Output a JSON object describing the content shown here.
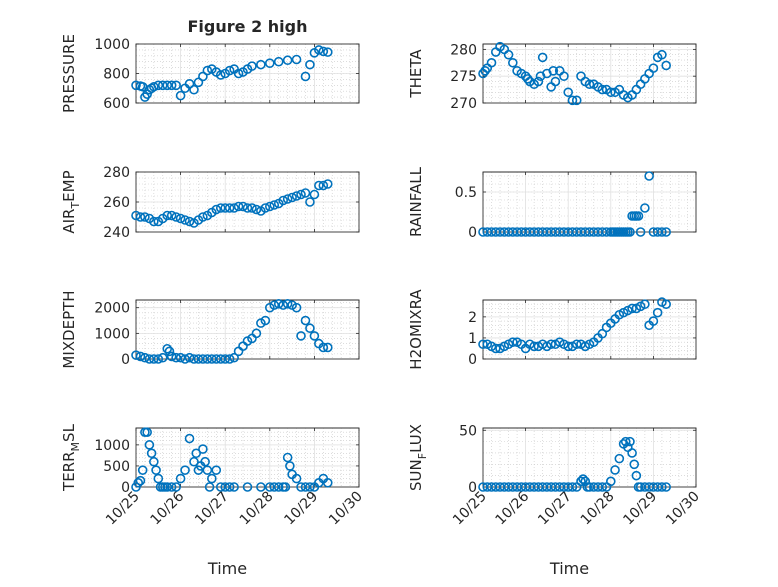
{
  "figure": {
    "title": "Figure 2 high",
    "colors": {
      "marker": "#0072BD",
      "grid": "#e0e0e0",
      "axis": "#262626"
    }
  },
  "chart_data": [
    {
      "type": "scatter",
      "id": "pressure",
      "title": "Figure 2 high",
      "ylabel": "PRESSURE",
      "xlabel": "",
      "ylim": [
        600,
        1000
      ],
      "yticks": [
        600,
        800,
        1000
      ],
      "xlim": [
        0,
        5
      ],
      "xticks": [
        0,
        1,
        2,
        3,
        4,
        5
      ],
      "xticklabels": [],
      "x": [
        0.0,
        0.1,
        0.15,
        0.2,
        0.25,
        0.3,
        0.35,
        0.4,
        0.5,
        0.6,
        0.7,
        0.8,
        0.9,
        1.0,
        1.1,
        1.2,
        1.3,
        1.4,
        1.5,
        1.6,
        1.7,
        1.8,
        1.9,
        2.0,
        2.1,
        2.2,
        2.3,
        2.4,
        2.5,
        2.6,
        2.8,
        3.0,
        3.2,
        3.4,
        3.6,
        3.8,
        3.9,
        4.0,
        4.1,
        4.2,
        4.3
      ],
      "y": [
        720,
        715,
        710,
        640,
        660,
        690,
        700,
        710,
        720,
        720,
        720,
        720,
        720,
        650,
        700,
        730,
        690,
        740,
        780,
        820,
        830,
        810,
        790,
        800,
        820,
        830,
        800,
        810,
        830,
        850,
        860,
        870,
        880,
        890,
        895,
        780,
        860,
        940,
        960,
        950,
        945
      ],
      "grid": true,
      "minor_grid": true
    },
    {
      "type": "scatter",
      "id": "theta",
      "title": "",
      "ylabel": "THETA",
      "xlabel": "",
      "ylim": [
        270,
        281
      ],
      "yticks": [
        270,
        275,
        280
      ],
      "xlim": [
        0,
        5
      ],
      "xticks": [
        0,
        1,
        2,
        3,
        4,
        5
      ],
      "xticklabels": [],
      "x": [
        0.0,
        0.05,
        0.1,
        0.2,
        0.3,
        0.4,
        0.5,
        0.6,
        0.7,
        0.8,
        0.9,
        1.0,
        1.05,
        1.1,
        1.2,
        1.3,
        1.35,
        1.4,
        1.5,
        1.6,
        1.65,
        1.7,
        1.8,
        1.9,
        2.0,
        2.1,
        2.2,
        2.3,
        2.4,
        2.5,
        2.6,
        2.7,
        2.8,
        2.9,
        3.0,
        3.1,
        3.2,
        3.3,
        3.4,
        3.5,
        3.6,
        3.7,
        3.8,
        3.9,
        4.0,
        4.1,
        4.2,
        4.3
      ],
      "y": [
        275.5,
        276,
        276.5,
        277.5,
        279.5,
        280.5,
        280,
        279,
        277.5,
        276,
        275.5,
        275,
        274.5,
        274,
        273.5,
        274,
        275,
        278.5,
        275.5,
        273,
        276,
        274,
        276,
        275,
        272,
        270.5,
        270.5,
        275,
        274,
        273.5,
        273.5,
        273,
        272.5,
        272.5,
        272,
        272,
        272.5,
        271.5,
        271,
        271.5,
        272.5,
        273.5,
        274.5,
        275.5,
        276.5,
        278.5,
        279,
        277
      ],
      "grid": true,
      "minor_grid": true
    },
    {
      "type": "scatter",
      "id": "air_temp",
      "title": "",
      "ylabel": "AIR",
      "ylabel_sub": "T",
      "ylabel_tail": "EMP",
      "xlabel": "",
      "ylim": [
        240,
        280
      ],
      "yticks": [
        240,
        260,
        280
      ],
      "xlim": [
        0,
        5
      ],
      "xticks": [
        0,
        1,
        2,
        3,
        4,
        5
      ],
      "xticklabels": [],
      "x": [
        0.0,
        0.1,
        0.2,
        0.3,
        0.4,
        0.5,
        0.6,
        0.7,
        0.8,
        0.9,
        1.0,
        1.1,
        1.2,
        1.3,
        1.4,
        1.5,
        1.6,
        1.7,
        1.8,
        1.9,
        2.0,
        2.1,
        2.2,
        2.3,
        2.4,
        2.5,
        2.6,
        2.7,
        2.8,
        2.9,
        3.0,
        3.1,
        3.2,
        3.3,
        3.4,
        3.5,
        3.6,
        3.7,
        3.8,
        3.9,
        4.0,
        4.1,
        4.2,
        4.3
      ],
      "y": [
        251,
        250,
        250,
        249,
        247,
        247,
        249,
        251,
        251,
        250,
        249,
        248,
        247,
        246,
        248,
        250,
        251,
        253,
        255,
        256,
        256,
        256,
        256,
        257,
        257,
        256,
        256,
        255,
        254,
        256,
        257,
        258,
        259,
        261,
        262,
        263,
        264,
        265,
        266,
        260,
        265,
        271,
        271,
        272
      ],
      "grid": true,
      "minor_grid": true
    },
    {
      "type": "scatter",
      "id": "rainfall",
      "title": "",
      "ylabel": "RAINFALL",
      "xlabel": "",
      "ylim": [
        0,
        0.75
      ],
      "yticks": [
        0,
        0.5
      ],
      "xlim": [
        0,
        5
      ],
      "xticks": [
        0,
        1,
        2,
        3,
        4,
        5
      ],
      "xticklabels": [],
      "x": [
        0.0,
        0.1,
        0.2,
        0.3,
        0.4,
        0.5,
        0.6,
        0.7,
        0.8,
        0.9,
        1.0,
        1.1,
        1.2,
        1.3,
        1.4,
        1.5,
        1.6,
        1.7,
        1.8,
        1.9,
        2.0,
        2.1,
        2.2,
        2.3,
        2.4,
        2.5,
        2.6,
        2.7,
        2.8,
        2.9,
        3.0,
        3.05,
        3.1,
        3.15,
        3.2,
        3.25,
        3.3,
        3.35,
        3.4,
        3.45,
        3.5,
        3.55,
        3.6,
        3.65,
        3.7,
        3.8,
        3.9,
        4.0,
        4.1,
        4.2,
        4.3
      ],
      "y": [
        0,
        0,
        0,
        0,
        0,
        0,
        0,
        0,
        0,
        0,
        0,
        0,
        0,
        0,
        0,
        0,
        0,
        0,
        0,
        0,
        0,
        0,
        0,
        0,
        0,
        0,
        0,
        0,
        0,
        0,
        0,
        0,
        0,
        0,
        0,
        0,
        0,
        0,
        0,
        0,
        0.2,
        0.2,
        0.2,
        0.2,
        0,
        0.3,
        0.7,
        0,
        0,
        0,
        0
      ],
      "grid": true,
      "minor_grid": true
    },
    {
      "type": "scatter",
      "id": "mixdepth",
      "title": "",
      "ylabel": "MIXDEPTH",
      "xlabel": "",
      "ylim": [
        0,
        2300
      ],
      "yticks": [
        0,
        1000,
        2000
      ],
      "xlim": [
        0,
        5
      ],
      "xticks": [
        0,
        1,
        2,
        3,
        4,
        5
      ],
      "xticklabels": [],
      "x": [
        0.0,
        0.1,
        0.2,
        0.3,
        0.4,
        0.5,
        0.6,
        0.7,
        0.75,
        0.8,
        0.9,
        1.0,
        1.1,
        1.2,
        1.3,
        1.4,
        1.5,
        1.6,
        1.7,
        1.8,
        1.9,
        2.0,
        2.1,
        2.2,
        2.3,
        2.4,
        2.5,
        2.6,
        2.7,
        2.8,
        2.9,
        3.0,
        3.1,
        3.2,
        3.3,
        3.4,
        3.5,
        3.6,
        3.7,
        3.8,
        3.9,
        4.0,
        4.1,
        4.2,
        4.3
      ],
      "y": [
        150,
        100,
        50,
        0,
        0,
        0,
        50,
        400,
        300,
        100,
        50,
        50,
        0,
        50,
        0,
        0,
        0,
        0,
        0,
        0,
        0,
        0,
        0,
        50,
        300,
        500,
        700,
        800,
        1000,
        1400,
        1500,
        2000,
        2100,
        2150,
        2100,
        2150,
        2100,
        2000,
        900,
        1500,
        1200,
        900,
        600,
        450,
        450
      ],
      "grid": true,
      "minor_grid": true
    },
    {
      "type": "scatter",
      "id": "h2omixra",
      "title": "",
      "ylabel": "H2OMIXRA",
      "xlabel": "",
      "ylim": [
        0,
        2.8
      ],
      "yticks": [
        0,
        1,
        2
      ],
      "xlim": [
        0,
        5
      ],
      "xticks": [
        0,
        1,
        2,
        3,
        4,
        5
      ],
      "xticklabels": [],
      "x": [
        0.0,
        0.1,
        0.2,
        0.3,
        0.4,
        0.5,
        0.6,
        0.7,
        0.8,
        0.9,
        1.0,
        1.1,
        1.2,
        1.3,
        1.4,
        1.5,
        1.6,
        1.7,
        1.8,
        1.9,
        2.0,
        2.1,
        2.2,
        2.3,
        2.4,
        2.5,
        2.6,
        2.7,
        2.8,
        2.9,
        3.0,
        3.1,
        3.2,
        3.3,
        3.4,
        3.5,
        3.6,
        3.7,
        3.8,
        3.9,
        4.0,
        4.1,
        4.2,
        4.3
      ],
      "y": [
        0.7,
        0.7,
        0.6,
        0.5,
        0.5,
        0.6,
        0.7,
        0.8,
        0.8,
        0.7,
        0.5,
        0.7,
        0.6,
        0.6,
        0.7,
        0.6,
        0.7,
        0.7,
        0.8,
        0.7,
        0.6,
        0.6,
        0.7,
        0.7,
        0.6,
        0.7,
        0.8,
        1.0,
        1.2,
        1.5,
        1.7,
        1.9,
        2.1,
        2.2,
        2.3,
        2.4,
        2.4,
        2.5,
        2.6,
        1.6,
        1.8,
        2.2,
        2.7,
        2.6
      ],
      "grid": true,
      "minor_grid": true
    },
    {
      "type": "scatter",
      "id": "terr_msl",
      "title": "",
      "ylabel": "TERR",
      "ylabel_sub": "M",
      "ylabel_tail": "SL",
      "xlabel": "Time",
      "ylim": [
        0,
        1400
      ],
      "yticks": [
        0,
        500,
        1000
      ],
      "xlim": [
        0,
        5
      ],
      "xticks": [
        0,
        1,
        2,
        3,
        4,
        5
      ],
      "xticklabels": [
        "10/25",
        "10/26",
        "10/27",
        "10/28",
        "10/29",
        "10/30"
      ],
      "x": [
        0.0,
        0.05,
        0.1,
        0.15,
        0.2,
        0.25,
        0.3,
        0.35,
        0.4,
        0.45,
        0.5,
        0.55,
        0.6,
        0.65,
        0.7,
        0.8,
        0.9,
        1.0,
        1.1,
        1.2,
        1.3,
        1.35,
        1.4,
        1.45,
        1.5,
        1.55,
        1.6,
        1.65,
        1.7,
        1.8,
        1.9,
        2.0,
        2.1,
        2.2,
        2.5,
        2.8,
        3.0,
        3.1,
        3.2,
        3.3,
        3.35,
        3.4,
        3.45,
        3.5,
        3.6,
        3.7,
        3.8,
        3.9,
        4.0,
        4.1,
        4.2,
        4.3
      ],
      "y": [
        0,
        100,
        150,
        400,
        1300,
        1300,
        1000,
        800,
        600,
        400,
        200,
        0,
        0,
        0,
        0,
        0,
        0,
        200,
        400,
        1150,
        600,
        800,
        400,
        500,
        900,
        600,
        400,
        0,
        200,
        400,
        0,
        0,
        0,
        0,
        0,
        0,
        0,
        0,
        0,
        0,
        0,
        700,
        500,
        300,
        200,
        0,
        0,
        0,
        0,
        100,
        200,
        100
      ],
      "grid": true,
      "minor_grid": true
    },
    {
      "type": "scatter",
      "id": "sun_flux",
      "title": "",
      "ylabel": "SUN",
      "ylabel_sub": "F",
      "ylabel_tail": "LUX",
      "xlabel": "Time",
      "ylim": [
        0,
        52
      ],
      "yticks": [
        0,
        50
      ],
      "xlim": [
        0,
        5
      ],
      "xticks": [
        0,
        1,
        2,
        3,
        4,
        5
      ],
      "xticklabels": [
        "10/25",
        "10/26",
        "10/27",
        "10/28",
        "10/29",
        "10/30"
      ],
      "x": [
        0.0,
        0.1,
        0.2,
        0.3,
        0.4,
        0.5,
        0.6,
        0.7,
        0.8,
        0.9,
        1.0,
        1.1,
        1.2,
        1.3,
        1.4,
        1.5,
        1.6,
        1.7,
        1.8,
        1.9,
        2.0,
        2.1,
        2.2,
        2.3,
        2.35,
        2.4,
        2.45,
        2.5,
        2.6,
        2.7,
        2.8,
        2.9,
        3.0,
        3.1,
        3.2,
        3.3,
        3.35,
        3.4,
        3.45,
        3.5,
        3.55,
        3.6,
        3.65,
        3.7,
        3.8,
        3.9,
        4.0,
        4.1,
        4.2,
        4.3
      ],
      "y": [
        0,
        0,
        0,
        0,
        0,
        0,
        0,
        0,
        0,
        0,
        0,
        0,
        0,
        0,
        0,
        0,
        0,
        0,
        0,
        0,
        0,
        0,
        0,
        5,
        7,
        5,
        0,
        0,
        0,
        0,
        0,
        0,
        5,
        15,
        25,
        38,
        40,
        35,
        40,
        30,
        20,
        10,
        0,
        0,
        0,
        0,
        0,
        0,
        0,
        0
      ],
      "grid": true,
      "minor_grid": true
    }
  ]
}
